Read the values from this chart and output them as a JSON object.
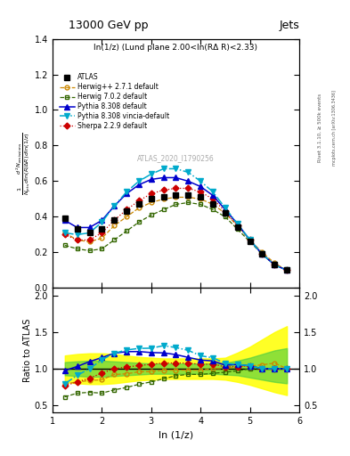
{
  "title_top": "13000 GeV pp",
  "title_right": "Jets",
  "subtitle": "ln(1/z) (Lund plane 2.00<ln(RΔ R)<2.33)",
  "watermark": "ATLAS_2020_I1790256",
  "right_label": "Rivet 3.1.10, ≥ 500k events",
  "side_label": "mcplots.cern.ch [arXiv:1306.3436]",
  "xlabel": "ln (1/z)",
  "ylabel_ratio": "Ratio to ATLAS",
  "xlim": [
    1.0,
    6.0
  ],
  "ylim_main": [
    0.0,
    1.4
  ],
  "ylim_ratio": [
    0.4,
    2.1
  ],
  "yticks_main": [
    0.0,
    0.2,
    0.4,
    0.6,
    0.8,
    1.0,
    1.2,
    1.4
  ],
  "yticks_ratio": [
    0.5,
    1.0,
    1.5,
    2.0
  ],
  "xticks": [
    1,
    2,
    3,
    4,
    5,
    6
  ],
  "atlas_x": [
    1.25,
    1.5,
    1.75,
    2.0,
    2.25,
    2.5,
    2.75,
    3.0,
    3.25,
    3.5,
    3.75,
    4.0,
    4.25,
    4.5,
    4.75,
    5.0,
    5.25,
    5.5,
    5.75
  ],
  "atlas_y": [
    0.39,
    0.33,
    0.31,
    0.33,
    0.38,
    0.43,
    0.47,
    0.5,
    0.51,
    0.52,
    0.52,
    0.51,
    0.47,
    0.42,
    0.34,
    0.26,
    0.19,
    0.13,
    0.1
  ],
  "herwig_pp_y": [
    0.31,
    0.27,
    0.26,
    0.28,
    0.35,
    0.4,
    0.45,
    0.48,
    0.5,
    0.51,
    0.51,
    0.5,
    0.47,
    0.42,
    0.35,
    0.27,
    0.2,
    0.14,
    0.1
  ],
  "herwig702_y": [
    0.24,
    0.22,
    0.21,
    0.22,
    0.27,
    0.32,
    0.37,
    0.41,
    0.44,
    0.47,
    0.48,
    0.47,
    0.44,
    0.4,
    0.33,
    0.26,
    0.19,
    0.13,
    0.1
  ],
  "pythia_def_y": [
    0.38,
    0.34,
    0.34,
    0.38,
    0.46,
    0.53,
    0.58,
    0.61,
    0.62,
    0.62,
    0.6,
    0.57,
    0.52,
    0.44,
    0.36,
    0.27,
    0.19,
    0.13,
    0.1
  ],
  "pythia_vincia_y": [
    0.31,
    0.3,
    0.31,
    0.37,
    0.46,
    0.54,
    0.6,
    0.64,
    0.67,
    0.67,
    0.65,
    0.6,
    0.54,
    0.45,
    0.36,
    0.27,
    0.19,
    0.13,
    0.1
  ],
  "sherpa_y": [
    0.3,
    0.27,
    0.27,
    0.31,
    0.38,
    0.44,
    0.49,
    0.53,
    0.55,
    0.56,
    0.56,
    0.54,
    0.5,
    0.43,
    0.35,
    0.27,
    0.19,
    0.13,
    0.1
  ],
  "band_yellow_lo": [
    0.82,
    0.8,
    0.79,
    0.79,
    0.8,
    0.82,
    0.84,
    0.85,
    0.86,
    0.86,
    0.86,
    0.86,
    0.86,
    0.85,
    0.82,
    0.78,
    0.73,
    0.68,
    0.64
  ],
  "band_yellow_hi": [
    1.18,
    1.2,
    1.21,
    1.21,
    1.2,
    1.18,
    1.16,
    1.15,
    1.14,
    1.14,
    1.14,
    1.14,
    1.14,
    1.15,
    1.22,
    1.3,
    1.4,
    1.5,
    1.58
  ],
  "band_green_lo": [
    0.91,
    0.9,
    0.89,
    0.89,
    0.9,
    0.91,
    0.92,
    0.93,
    0.93,
    0.93,
    0.93,
    0.93,
    0.93,
    0.92,
    0.91,
    0.88,
    0.85,
    0.82,
    0.8
  ],
  "band_green_hi": [
    1.09,
    1.1,
    1.11,
    1.11,
    1.1,
    1.09,
    1.08,
    1.07,
    1.07,
    1.07,
    1.07,
    1.07,
    1.07,
    1.08,
    1.11,
    1.15,
    1.2,
    1.25,
    1.28
  ],
  "color_atlas": "#000000",
  "color_herwig_pp": "#cc8800",
  "color_herwig702": "#336600",
  "color_pythia_def": "#0000cc",
  "color_pythia_vincia": "#00aacc",
  "color_sherpa": "#cc0000",
  "color_band_yellow": "#ffff00",
  "color_band_green": "#44cc44"
}
